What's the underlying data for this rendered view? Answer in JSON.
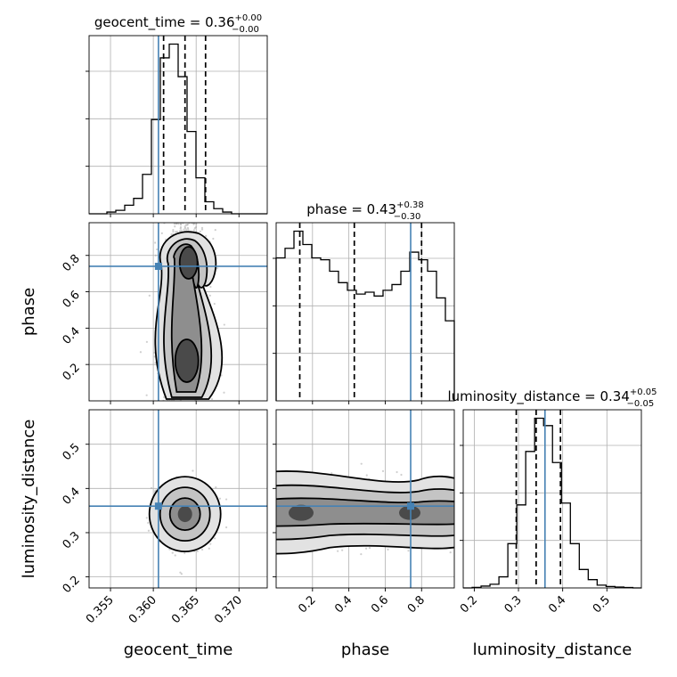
{
  "chart_data": {
    "type": "corner",
    "parameters": [
      {
        "name": "geocent_time",
        "label": "geocent_time",
        "title_prefix": "geocent_time = 0.36",
        "title_plus": "+0.00",
        "title_minus": "−0.00",
        "range": [
          0.3525,
          0.3733
        ],
        "ticks": [
          0.355,
          0.36,
          0.365,
          0.37
        ],
        "tick_labels": [
          "0.355",
          "0.360",
          "0.365",
          "0.370"
        ],
        "quantiles": [
          0.3612,
          0.3637,
          0.3661
        ],
        "truth": 0.3606,
        "hist_edges_start": 0.3525,
        "hist_bin_width": 0.00104,
        "hist_counts": [
          0,
          0,
          1,
          2,
          5,
          9,
          23,
          55,
          91,
          99,
          80,
          48,
          21,
          7,
          3,
          1,
          0,
          0,
          0,
          0
        ]
      },
      {
        "name": "phase",
        "label": "phase",
        "title_prefix": "phase = 0.43",
        "title_plus": "+0.38",
        "title_minus": "−0.30",
        "range": [
          0.0,
          0.98
        ],
        "ticks": [
          0.2,
          0.4,
          0.6,
          0.8
        ],
        "tick_labels": [
          "0.2",
          "0.4",
          "0.6",
          "0.8"
        ],
        "quantiles": [
          0.13,
          0.43,
          0.8
        ],
        "truth": 0.74,
        "hist_edges_start": 0.0,
        "hist_bin_width": 0.049,
        "hist_counts": [
          75,
          80,
          89,
          82,
          75,
          74,
          68,
          62,
          58,
          56,
          57,
          55,
          58,
          61,
          68,
          78,
          74,
          68,
          54,
          42
        ]
      },
      {
        "name": "luminosity_distance",
        "label": "luminosity_distance",
        "title_prefix": "luminosity_distance = 0.34",
        "title_plus": "+0.05",
        "title_minus": "−0.05",
        "range": [
          0.175,
          0.578
        ],
        "ticks": [
          0.2,
          0.3,
          0.4,
          0.5
        ],
        "tick_labels": [
          "0.2",
          "0.3",
          "0.4",
          "0.5"
        ],
        "quantiles": [
          0.295,
          0.34,
          0.395
        ],
        "truth": 0.36,
        "hist_edges_start": 0.175,
        "hist_bin_width": 0.0202,
        "hist_counts": [
          0,
          0.3,
          1,
          2,
          6,
          24,
          45,
          74,
          92,
          88,
          68,
          46,
          24,
          10,
          4.5,
          1.5,
          0.8,
          0.5,
          0.2,
          0
        ]
      }
    ],
    "pairs": [
      {
        "x": "geocent_time",
        "y": "phase",
        "y_ticks": [
          0.2,
          0.4,
          0.6,
          0.8
        ],
        "y_tick_labels": [
          "0.2",
          "0.4",
          "0.6",
          "0.8"
        ],
        "truth": [
          0.3606,
          0.74
        ]
      },
      {
        "x": "geocent_time",
        "y": "luminosity_distance",
        "y_ticks": [
          0.2,
          0.3,
          0.4,
          0.5
        ],
        "y_tick_labels": [
          "0.2",
          "0.3",
          "0.4",
          "0.5"
        ],
        "truth": [
          0.3606,
          0.36
        ]
      },
      {
        "x": "phase",
        "y": "luminosity_distance",
        "truth": [
          0.74,
          0.36
        ]
      }
    ],
    "grid": true
  }
}
